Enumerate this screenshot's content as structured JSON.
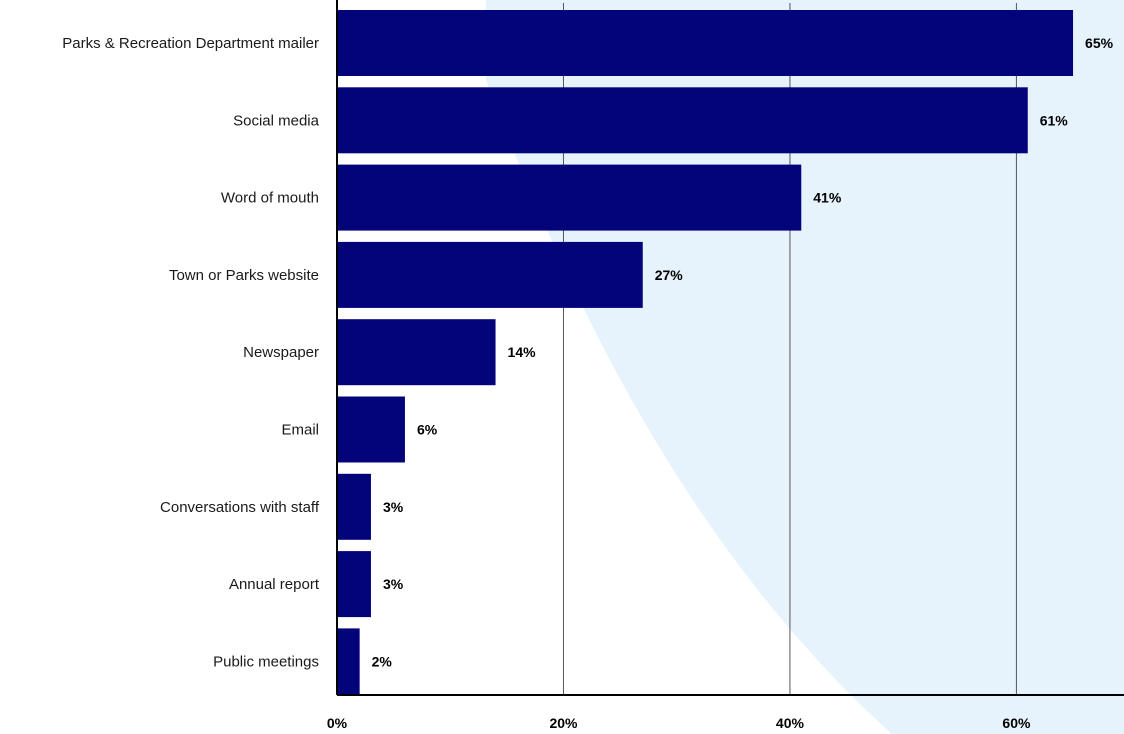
{
  "chart_data": {
    "type": "bar",
    "orientation": "horizontal",
    "categories": [
      "Parks & Recreation Department mailer",
      "Social media",
      "Word of mouth",
      "Town or Parks website",
      "Newspaper",
      "Email",
      "Conversations with staff",
      "Annual report",
      "Public meetings"
    ],
    "values": [
      65,
      61,
      41,
      27,
      14,
      6,
      3,
      3,
      2
    ],
    "value_labels": [
      "65%",
      "61%",
      "41%",
      "27%",
      "14%",
      "6%",
      "3%",
      "3%",
      "2%"
    ],
    "x_ticks": [
      0,
      20,
      40,
      60
    ],
    "x_tick_labels": [
      "0%",
      "20%",
      "40%",
      "60%"
    ],
    "xlim": [
      0,
      69.5
    ],
    "grid": "vertical",
    "title": "",
    "xlabel": "",
    "ylabel": ""
  },
  "colors": {
    "bar": "#03037a",
    "gridline": "#555555",
    "axis": "#000000",
    "background_shape": "#e6f3fc"
  }
}
